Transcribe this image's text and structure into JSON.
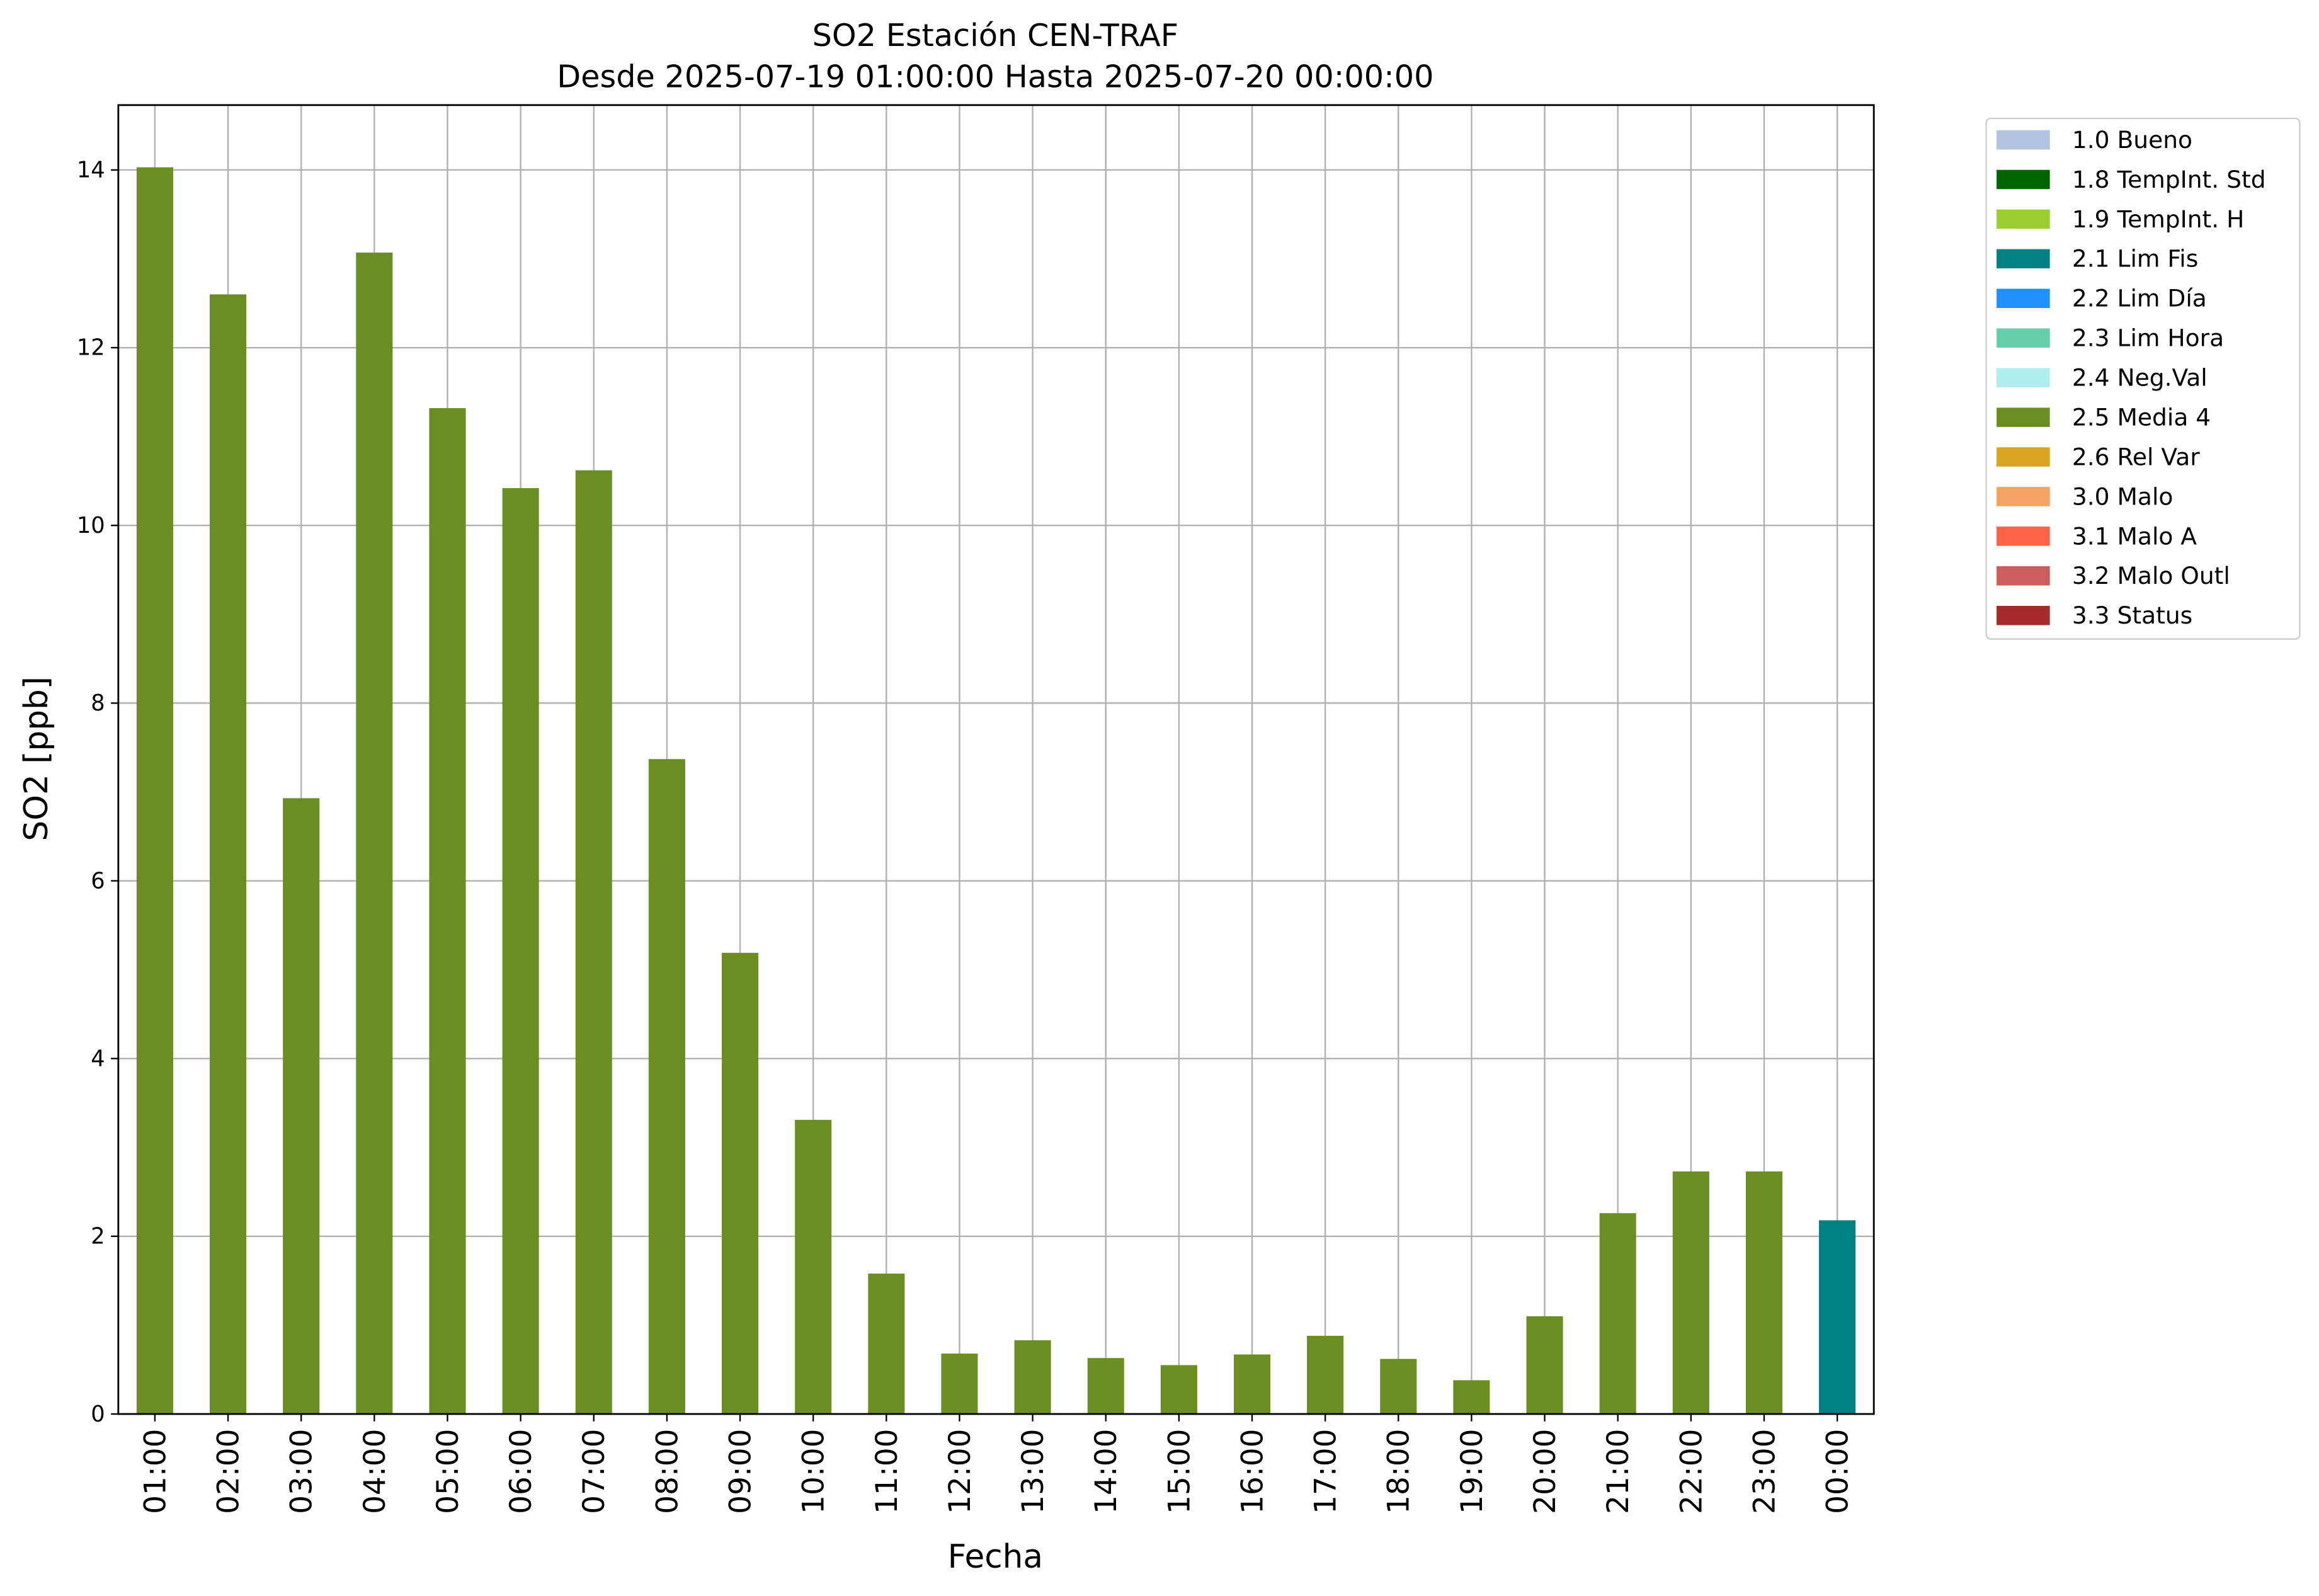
{
  "chart_data": {
    "type": "bar",
    "stacked": true,
    "title": "SO2 Estación CEN-TRAF",
    "subtitle": "Desde 2025-07-19 01:00:00 Hasta 2025-07-20 00:00:00",
    "x_label": "Fecha",
    "y_label": "SO2 [ppb]",
    "categories": [
      "01:00",
      "02:00",
      "03:00",
      "04:00",
      "05:00",
      "06:00",
      "07:00",
      "08:00",
      "09:00",
      "10:00",
      "11:00",
      "12:00",
      "13:00",
      "14:00",
      "15:00",
      "16:00",
      "17:00",
      "18:00",
      "19:00",
      "20:00",
      "21:00",
      "22:00",
      "23:00",
      "00:00"
    ],
    "series": [
      {
        "name": "1.0 Bueno",
        "color": "#b0c4de",
        "values": [
          null,
          null,
          null,
          null,
          null,
          null,
          null,
          null,
          null,
          null,
          null,
          null,
          null,
          null,
          null,
          null,
          null,
          null,
          null,
          null,
          null,
          null,
          null,
          null
        ]
      },
      {
        "name": "1.8 TempInt. Std",
        "color": "#006400",
        "values": [
          null,
          null,
          null,
          null,
          null,
          null,
          null,
          null,
          null,
          null,
          null,
          null,
          null,
          null,
          null,
          null,
          null,
          null,
          null,
          null,
          null,
          null,
          null,
          null
        ]
      },
      {
        "name": "1.9 TempInt. H",
        "color": "#9acd32",
        "values": [
          null,
          null,
          null,
          null,
          null,
          null,
          null,
          null,
          null,
          null,
          null,
          null,
          null,
          null,
          null,
          null,
          null,
          null,
          null,
          null,
          null,
          null,
          null,
          null
        ]
      },
      {
        "name": "2.1 Lim Fis",
        "color": "#008080",
        "values": [
          null,
          null,
          null,
          null,
          null,
          null,
          null,
          null,
          null,
          null,
          null,
          null,
          null,
          null,
          null,
          null,
          null,
          null,
          null,
          null,
          null,
          null,
          null,
          2.18
        ]
      },
      {
        "name": "2.2 Lim Día",
        "color": "#1e90ff",
        "values": [
          null,
          null,
          null,
          null,
          null,
          null,
          null,
          null,
          null,
          null,
          null,
          null,
          null,
          null,
          null,
          null,
          null,
          null,
          null,
          null,
          null,
          null,
          null,
          null
        ]
      },
      {
        "name": "2.3 Lim Hora",
        "color": "#66cdaa",
        "values": [
          null,
          null,
          null,
          null,
          null,
          null,
          null,
          null,
          null,
          null,
          null,
          null,
          null,
          null,
          null,
          null,
          null,
          null,
          null,
          null,
          null,
          null,
          null,
          null
        ]
      },
      {
        "name": "2.4 Neg.Val",
        "color": "#afeeee",
        "values": [
          null,
          null,
          null,
          null,
          null,
          null,
          null,
          null,
          null,
          null,
          null,
          null,
          null,
          null,
          null,
          null,
          null,
          null,
          null,
          null,
          null,
          null,
          null,
          null
        ]
      },
      {
        "name": "2.5 Media 4",
        "color": "#6b8e23",
        "values": [
          14.03,
          12.6,
          6.93,
          13.07,
          11.32,
          10.42,
          10.62,
          7.37,
          5.19,
          3.31,
          1.58,
          0.68,
          0.83,
          0.63,
          0.55,
          0.67,
          0.88,
          0.62,
          0.38,
          1.1,
          2.26,
          2.73,
          2.73,
          null
        ]
      },
      {
        "name": "2.6 Rel Var",
        "color": "#daa520",
        "values": [
          null,
          null,
          null,
          null,
          null,
          null,
          null,
          null,
          null,
          null,
          null,
          null,
          null,
          null,
          null,
          null,
          null,
          null,
          null,
          null,
          null,
          null,
          null,
          null
        ]
      },
      {
        "name": "3.0 Malo",
        "color": "#f4a460",
        "values": [
          null,
          null,
          null,
          null,
          null,
          null,
          null,
          null,
          null,
          null,
          null,
          null,
          null,
          null,
          null,
          null,
          null,
          null,
          null,
          null,
          null,
          null,
          null,
          null
        ]
      },
      {
        "name": "3.1 Malo A",
        "color": "#ff6347",
        "values": [
          null,
          null,
          null,
          null,
          null,
          null,
          null,
          null,
          null,
          null,
          null,
          null,
          null,
          null,
          null,
          null,
          null,
          null,
          null,
          null,
          null,
          null,
          null,
          null
        ]
      },
      {
        "name": "3.2 Malo Outl",
        "color": "#cd5c5c",
        "values": [
          null,
          null,
          null,
          null,
          null,
          null,
          null,
          null,
          null,
          null,
          null,
          null,
          null,
          null,
          null,
          null,
          null,
          null,
          null,
          null,
          null,
          null,
          null,
          null
        ]
      },
      {
        "name": "3.3 Status",
        "color": "#a52a2a",
        "values": [
          null,
          null,
          null,
          null,
          null,
          null,
          null,
          null,
          null,
          null,
          null,
          null,
          null,
          null,
          null,
          null,
          null,
          null,
          null,
          null,
          null,
          null,
          null,
          null
        ]
      }
    ],
    "ylim": [
      0,
      14.73
    ],
    "yticks": [
      0,
      2,
      4,
      6,
      8,
      10,
      12,
      14
    ],
    "grid": true
  }
}
